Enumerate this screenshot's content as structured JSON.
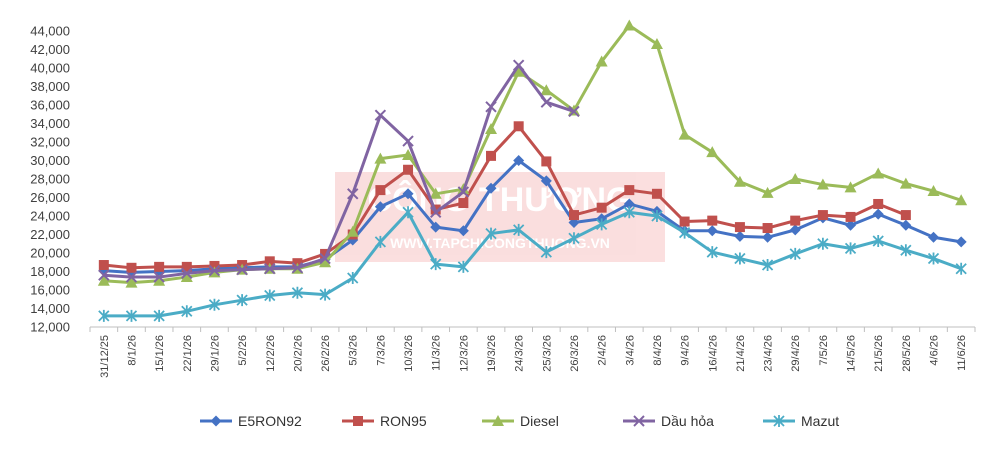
{
  "chart_data": {
    "type": "line",
    "title": "",
    "xlabel": "",
    "ylabel": "",
    "ylim": [
      12000,
      44000
    ],
    "y_ticks": [
      12000,
      14000,
      16000,
      18000,
      20000,
      22000,
      24000,
      26000,
      28000,
      30000,
      32000,
      34000,
      36000,
      38000,
      40000,
      42000,
      44000
    ],
    "y_tick_labels": [
      "12,000",
      "14,000",
      "16,000",
      "18,000",
      "20,000",
      "22,000",
      "24,000",
      "26,000",
      "28,000",
      "30,000",
      "32,000",
      "34,000",
      "36,000",
      "38,000",
      "40,000",
      "42,000",
      "44,000"
    ],
    "grid": false,
    "legend_position": "bottom",
    "categories": [
      "31/12/25",
      "8/1/26",
      "15/1/26",
      "22/1/26",
      "29/1/26",
      "5/2/26",
      "12/2/26",
      "20/2/26",
      "26/2/26",
      "5/3/26",
      "7/3/26",
      "10/3/26",
      "11/3/26",
      "12/3/26",
      "19/3/26",
      "24/3/26",
      "25/3/26",
      "26/3/26",
      "2/4/26",
      "3/4/26",
      "8/4/26",
      "9/4/26",
      "16/4/26",
      "21/4/26",
      "23/4/26",
      "29/4/26",
      "7/5/26",
      "14/5/26",
      "21/5/26",
      "28/5/26",
      "4/6/26",
      "11/6/26"
    ],
    "series": [
      {
        "name": "E5RON92",
        "color": "#4472C4",
        "marker": "diamond",
        "values": [
          18100,
          17900,
          18000,
          18100,
          18300,
          18400,
          18500,
          18500,
          19300,
          21400,
          25000,
          26400,
          22800,
          22400,
          27000,
          30000,
          27800,
          23300,
          23700,
          25300,
          24500,
          22400,
          22400,
          21800,
          21700,
          22500,
          23800,
          23000,
          24200,
          23000,
          21700,
          21200
        ]
      },
      {
        "name": "RON95",
        "color": "#C0504D",
        "marker": "square",
        "values": [
          18700,
          18400,
          18500,
          18500,
          18600,
          18700,
          19100,
          18900,
          19900,
          22000,
          26800,
          29000,
          24700,
          25400,
          30500,
          33700,
          29900,
          24100,
          24900,
          26800,
          26400,
          23400,
          23500,
          22800,
          22700,
          23500,
          24100,
          23900,
          25300,
          24100,
          null,
          null
        ]
      },
      {
        "name": "Diesel",
        "color": "#9BBB59",
        "marker": "triangle",
        "values": [
          17000,
          16800,
          17000,
          17400,
          17900,
          18200,
          18300,
          18300,
          19000,
          22300,
          30200,
          30600,
          26400,
          26900,
          33400,
          39600,
          37600,
          35400,
          40700,
          44600,
          42600,
          32800,
          30900,
          27700,
          26500,
          28000,
          27400,
          27100,
          28600,
          27500,
          26700,
          25700
        ]
      },
      {
        "name": "Dầu hỏa",
        "color": "#8064A2",
        "marker": "x",
        "values": [
          17600,
          17400,
          17400,
          17800,
          18100,
          18200,
          18300,
          18400,
          19400,
          26400,
          34900,
          32100,
          24400,
          26600,
          35800,
          40300,
          36300,
          35300,
          null,
          null,
          null,
          null,
          null,
          null,
          null,
          null,
          null,
          null,
          null,
          null,
          null,
          null
        ]
      },
      {
        "name": "Mazut",
        "color": "#4BACC6",
        "marker": "star",
        "values": [
          13200,
          13200,
          13200,
          13700,
          14400,
          14900,
          15400,
          15700,
          15500,
          17300,
          21200,
          24400,
          18800,
          18500,
          22100,
          22500,
          20100,
          21600,
          23100,
          24400,
          24000,
          22200,
          20100,
          19400,
          18700,
          19900,
          21000,
          20500,
          21300,
          20300,
          19400,
          18300
        ]
      }
    ]
  },
  "watermark": {
    "brand": "CÔNG THƯƠNG",
    "site": "WWW.TAPCHICONGTHUONG.VN",
    "color": "#E84C4C"
  }
}
